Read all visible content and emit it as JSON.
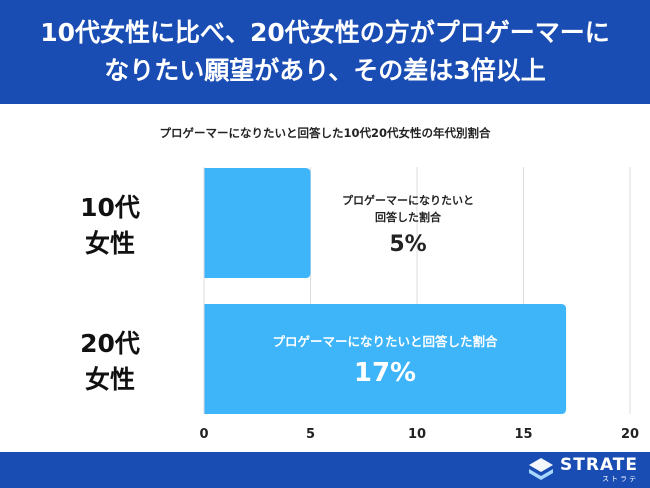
{
  "header": {
    "line1": "10代女性に比べ、20代女性の方がプロゲーマーに",
    "line2": "なりたい願望があり、その差は3倍以上"
  },
  "chart_data": {
    "type": "bar",
    "orientation": "horizontal",
    "title": "プロゲーマーになりたいと回答した10代20代女性の年代別割合",
    "categories": [
      {
        "line1": "10代",
        "line2": "女性"
      },
      {
        "line1": "20代",
        "line2": "女性"
      }
    ],
    "values": [
      5,
      17
    ],
    "bar_labels": [
      {
        "caption_line1": "プロゲーマーになりたいと",
        "caption_line2": "回答した割合",
        "value_text": "5%"
      },
      {
        "caption_line1": "プロゲーマーになりたいと回答した割合",
        "caption_line2": "",
        "value_text": "17%"
      }
    ],
    "xlim": [
      0,
      20
    ],
    "xticks": [
      "0",
      "5",
      "10",
      "15",
      "20"
    ],
    "grid": true,
    "bar_color": "#3eb4f9"
  },
  "footer": {
    "logo_text": "STRATE",
    "logo_sub": "ストラテ"
  }
}
